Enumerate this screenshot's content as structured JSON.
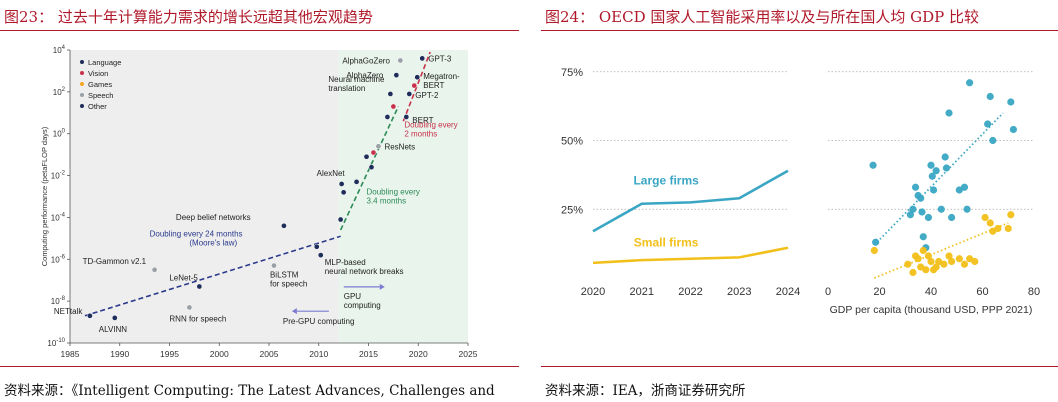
{
  "left": {
    "title": "图23：  过去十年计算能力需求的增长远超其他宏观趋势",
    "source": "资料来源：《Intelligent Computing: The Latest Advances, Challenges and"
  },
  "right": {
    "title": "图24：  OECD 国家人工智能采用率以及与所在国人均 GDP 比较",
    "source": "资料来源：IEA，浙商证券研究所"
  },
  "colors": {
    "title_red": "#b0192a",
    "language": "#1f2d5a",
    "vision": "#c8324a",
    "games": "#f5a623",
    "speech": "#9aa0a6",
    "other": "#1f2d5a",
    "large_firms": "#3aa6c4",
    "small_firms": "#f2c01a",
    "pre_gpu_bg": "#eeeeee",
    "gpu_bg": "#e8f4ec"
  },
  "chart_data": [
    {
      "type": "scatter",
      "ylabel": "Computing performance (petaFLOP days)",
      "xlim": [
        1985,
        2025
      ],
      "x_ticks": [
        "1985",
        "1990",
        "1995",
        "2000",
        "2005",
        "2010",
        "2015",
        "2020",
        "2025"
      ],
      "y_log_exponents": [
        -10,
        -8,
        -6,
        -4,
        -2,
        0,
        2,
        4
      ],
      "legend": [
        "Language",
        "Vision",
        "Games",
        "Speech",
        "Other"
      ],
      "legend_position": "top-left",
      "annotations": {
        "doubling_24": "Doubling every 24 months",
        "moores_law": "(Moore's law)",
        "doubling_34_a": "Doubling every",
        "doubling_34_b": "3.4 months",
        "doubling_2_a": "Doubling every",
        "doubling_2_b": "2 months",
        "gpu_a": "GPU",
        "gpu_b": "computing",
        "pre_gpu": "Pre-GPU computing"
      },
      "points": [
        {
          "x": 1987,
          "exp": -8.7,
          "cat": "other",
          "label": "NETtalk"
        },
        {
          "x": 1989.5,
          "exp": -8.8,
          "cat": "other",
          "label": "ALVINN"
        },
        {
          "x": 1993.5,
          "exp": -6.5,
          "cat": "speech",
          "label": "TD-Gammon v2.1"
        },
        {
          "x": 1998,
          "exp": -7.3,
          "cat": "other",
          "label": "LeNet-5"
        },
        {
          "x": 1997,
          "exp": -8.3,
          "cat": "speech",
          "label": "RNN for speech"
        },
        {
          "x": 2006.5,
          "exp": -4.4,
          "cat": "other",
          "label": "Deep belief networks"
        },
        {
          "x": 2005.5,
          "exp": -6.3,
          "cat": "speech",
          "label": "BiLSTM for speech"
        },
        {
          "x": 2010.2,
          "exp": -5.8,
          "cat": "other",
          "label": "MLP-based neural network breaks"
        },
        {
          "x": 2009.8,
          "exp": -5.4,
          "cat": "other",
          "label": ""
        },
        {
          "x": 2012.3,
          "exp": -2.4,
          "cat": "other",
          "label": "AlexNet"
        },
        {
          "x": 2012.5,
          "exp": -2.8,
          "cat": "other",
          "label": ""
        },
        {
          "x": 2012.2,
          "exp": -4.1,
          "cat": "other",
          "label": ""
        },
        {
          "x": 2013.8,
          "exp": -2.3,
          "cat": "other",
          "label": ""
        },
        {
          "x": 2014.8,
          "exp": -1.1,
          "cat": "other",
          "label": ""
        },
        {
          "x": 2015.5,
          "exp": -0.9,
          "cat": "vision",
          "label": ""
        },
        {
          "x": 2015.3,
          "exp": -1.6,
          "cat": "other",
          "label": ""
        },
        {
          "x": 2016,
          "exp": -0.6,
          "cat": "speech",
          "label": "ResNets"
        },
        {
          "x": 2016.9,
          "exp": 0.8,
          "cat": "other",
          "label": ""
        },
        {
          "x": 2017.5,
          "exp": 1.3,
          "cat": "vision",
          "label": ""
        },
        {
          "x": 2017.2,
          "exp": 1.9,
          "cat": "other",
          "label": "Neural machine translation"
        },
        {
          "x": 2017.8,
          "exp": 2.8,
          "cat": "other",
          "label": "AlphaZero"
        },
        {
          "x": 2018.2,
          "exp": 3.5,
          "cat": "speech",
          "label": "AlphaGoZero"
        },
        {
          "x": 2018.8,
          "exp": 0.8,
          "cat": "language",
          "label": "BERT"
        },
        {
          "x": 2019.1,
          "exp": 1.9,
          "cat": "language",
          "label": "GPT-2"
        },
        {
          "x": 2019.6,
          "exp": 2.3,
          "cat": "vision",
          "label": ""
        },
        {
          "x": 2019.9,
          "exp": 2.7,
          "cat": "language",
          "label": "Megatron-BERT"
        },
        {
          "x": 2020.4,
          "exp": 3.6,
          "cat": "language",
          "label": "GPT-3"
        }
      ],
      "trend_lines": [
        {
          "from": [
            1986.5,
            -8.7
          ],
          "to": [
            2012.2,
            -4.9
          ],
          "color": "#2b3a8c",
          "dash": true
        },
        {
          "from": [
            2012.2,
            -4.6
          ],
          "to": [
            2018,
            1.3
          ],
          "color": "#2e8b57",
          "dash": true
        },
        {
          "from": [
            2018.5,
            0.6
          ],
          "to": [
            2021.2,
            3.9
          ],
          "color": "#c8324a",
          "dash": true
        }
      ]
    },
    {
      "type": "line",
      "x": [
        2020,
        2021,
        2022,
        2023,
        2024
      ],
      "ylim": [
        0,
        0.8
      ],
      "y_ticks": [
        "75%",
        "50%",
        "25%"
      ],
      "series": [
        {
          "name": "Large firms",
          "values": [
            0.17,
            0.27,
            0.275,
            0.29,
            0.39
          ]
        },
        {
          "name": "Small firms",
          "values": [
            0.055,
            0.065,
            0.07,
            0.075,
            0.11
          ]
        }
      ]
    },
    {
      "type": "scatter",
      "xlabel": "GDP per capita (thousand USD, PPP 2021)",
      "x_ticks": [
        "0",
        "20",
        "40",
        "60",
        "80"
      ],
      "xlim": [
        0,
        80
      ],
      "ylim": [
        0,
        0.8
      ],
      "series": [
        {
          "name": "Large firms",
          "trend": [
            [
              18,
              0.12
            ],
            [
              68,
              0.6
            ]
          ],
          "points": [
            [
              17.5,
              0.41
            ],
            [
              18.5,
              0.13
            ],
            [
              32,
              0.23
            ],
            [
              33,
              0.25
            ],
            [
              34,
              0.33
            ],
            [
              35,
              0.3
            ],
            [
              36,
              0.29
            ],
            [
              36.5,
              0.24
            ],
            [
              37,
              0.15
            ],
            [
              38,
              0.11
            ],
            [
              39,
              0.22
            ],
            [
              40,
              0.41
            ],
            [
              40.5,
              0.37
            ],
            [
              41,
              0.32
            ],
            [
              42,
              0.39
            ],
            [
              44,
              0.25
            ],
            [
              45.5,
              0.44
            ],
            [
              46,
              0.4
            ],
            [
              47,
              0.6
            ],
            [
              48,
              0.22
            ],
            [
              51,
              0.32
            ],
            [
              53,
              0.33
            ],
            [
              54,
              0.25
            ],
            [
              55,
              0.71
            ],
            [
              62,
              0.56
            ],
            [
              63,
              0.66
            ],
            [
              64,
              0.5
            ],
            [
              71,
              0.64
            ],
            [
              72,
              0.54
            ]
          ]
        },
        {
          "name": "Small firms",
          "trend": [
            [
              18,
              0.0
            ],
            [
              70,
              0.2
            ]
          ],
          "points": [
            [
              18,
              0.1
            ],
            [
              31,
              0.05
            ],
            [
              33,
              0.02
            ],
            [
              34,
              0.08
            ],
            [
              35,
              0.07
            ],
            [
              36,
              0.04
            ],
            [
              37,
              0.1
            ],
            [
              38,
              0.03
            ],
            [
              39,
              0.08
            ],
            [
              40,
              0.06
            ],
            [
              41,
              0.03
            ],
            [
              42,
              0.04
            ],
            [
              43,
              0.06
            ],
            [
              45,
              0.05
            ],
            [
              47,
              0.08
            ],
            [
              48,
              0.06
            ],
            [
              51,
              0.07
            ],
            [
              53,
              0.05
            ],
            [
              55,
              0.07
            ],
            [
              57,
              0.06
            ],
            [
              61,
              0.22
            ],
            [
              63,
              0.2
            ],
            [
              64,
              0.17
            ],
            [
              66,
              0.18
            ],
            [
              70,
              0.18
            ],
            [
              71,
              0.23
            ]
          ]
        }
      ]
    }
  ]
}
